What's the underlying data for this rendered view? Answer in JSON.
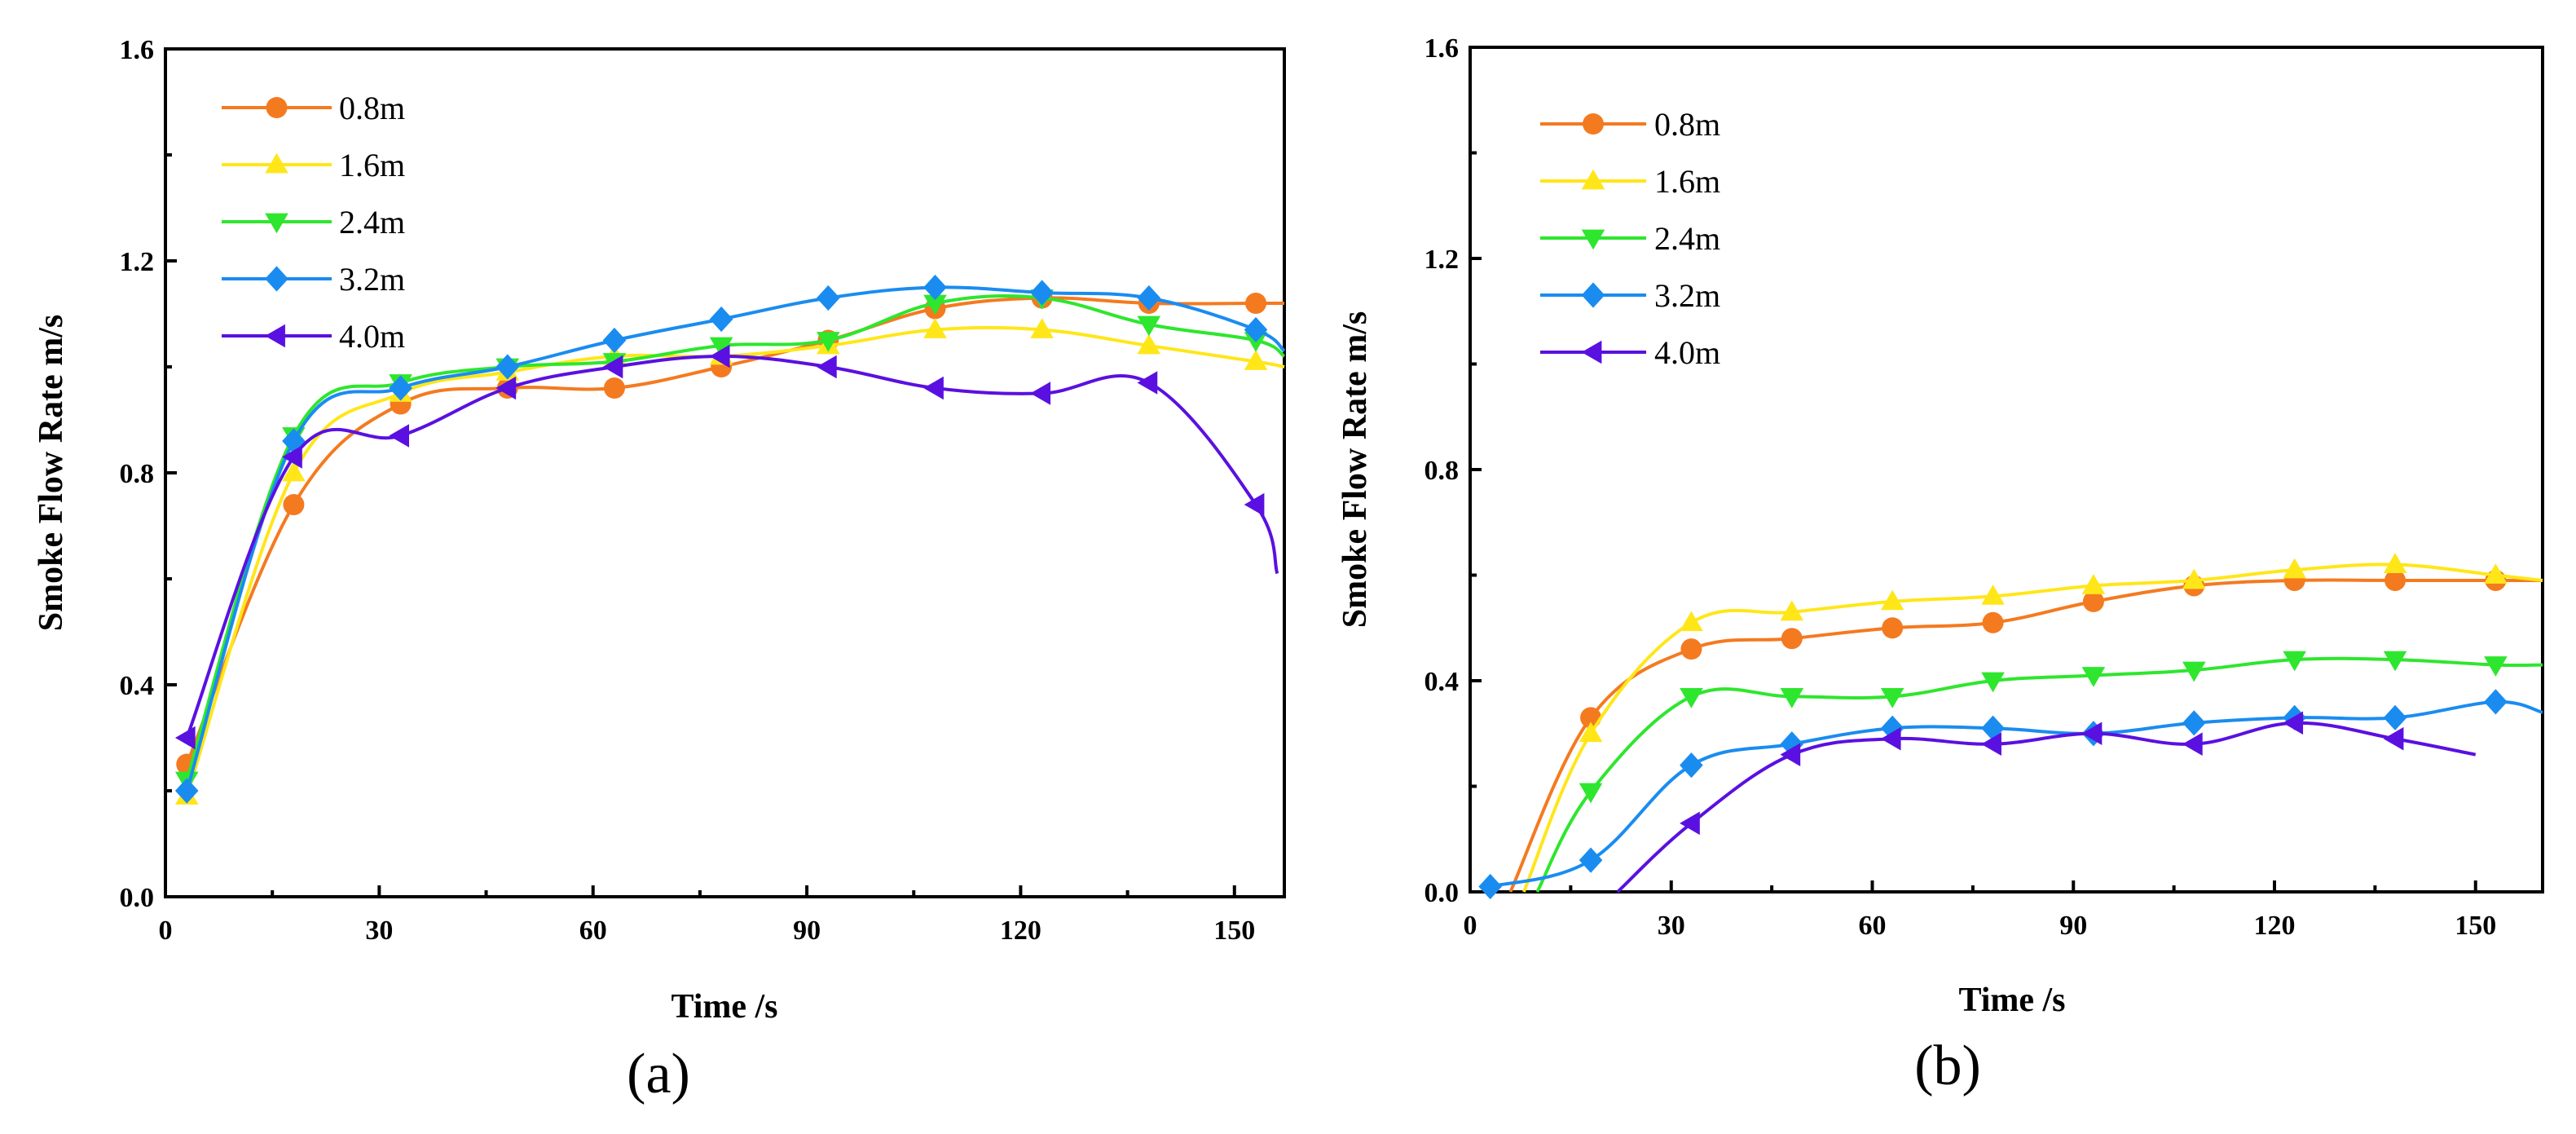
{
  "chart_data": [
    {
      "type": "line",
      "panel_label": "(a)",
      "xlabel": "Time /s",
      "ylabel": "Smoke Flow Rate m/s",
      "xlim": [
        0,
        157
      ],
      "ylim": [
        0,
        1.6
      ],
      "xticks": [
        "0",
        "30",
        "60",
        "90",
        "120",
        "150"
      ],
      "yticks": [
        "0.0",
        "0.4",
        "0.8",
        "1.2",
        "1.6"
      ],
      "legend_position": "top-left",
      "series": [
        {
          "name": "0.8m",
          "color": "#f47a20",
          "marker": "circle",
          "x": [
            3,
            18,
            33,
            48,
            63,
            78,
            93,
            108,
            123,
            138,
            153
          ],
          "y": [
            0.25,
            0.74,
            0.93,
            0.96,
            0.96,
            1.0,
            1.05,
            1.11,
            1.13,
            1.12,
            1.12
          ],
          "line_end": [
            157,
            1.12
          ]
        },
        {
          "name": "1.6m",
          "color": "#ffe619",
          "marker": "triangle-up",
          "x": [
            3,
            18,
            33,
            48,
            63,
            78,
            93,
            108,
            123,
            138,
            153
          ],
          "y": [
            0.19,
            0.8,
            0.95,
            0.99,
            1.02,
            1.02,
            1.04,
            1.07,
            1.07,
            1.04,
            1.01
          ],
          "line_end": [
            157,
            1.0
          ]
        },
        {
          "name": "2.4m",
          "color": "#2ee62e",
          "marker": "triangle-down",
          "x": [
            3,
            18,
            33,
            48,
            63,
            78,
            93,
            108,
            123,
            138,
            153
          ],
          "y": [
            0.22,
            0.87,
            0.97,
            1.0,
            1.01,
            1.04,
            1.05,
            1.12,
            1.13,
            1.08,
            1.05
          ],
          "line_end": [
            157,
            1.02
          ]
        },
        {
          "name": "3.2m",
          "color": "#1a8cf0",
          "marker": "diamond",
          "x": [
            3,
            18,
            33,
            48,
            63,
            78,
            93,
            108,
            123,
            138,
            153
          ],
          "y": [
            0.2,
            0.86,
            0.96,
            1.0,
            1.05,
            1.09,
            1.13,
            1.15,
            1.14,
            1.13,
            1.07
          ],
          "line_end": [
            157,
            1.03
          ]
        },
        {
          "name": "4.0m",
          "color": "#5a10e0",
          "marker": "triangle-left",
          "x": [
            3,
            18,
            33,
            48,
            63,
            78,
            93,
            108,
            123,
            138,
            153
          ],
          "y": [
            0.3,
            0.83,
            0.87,
            0.96,
            1.0,
            1.02,
            1.0,
            0.96,
            0.95,
            0.97,
            0.74
          ],
          "line_end": [
            156,
            0.61
          ]
        }
      ]
    },
    {
      "type": "line",
      "panel_label": "(b)",
      "xlabel": "Time /s",
      "ylabel": "Smoke Flow Rate m/s",
      "xlim": [
        0,
        160
      ],
      "ylim": [
        0,
        1.6
      ],
      "xticks": [
        "0",
        "30",
        "60",
        "90",
        "120",
        "150"
      ],
      "yticks": [
        "0.0",
        "0.4",
        "0.8",
        "1.2",
        "1.6"
      ],
      "legend_position": "top-left",
      "series": [
        {
          "name": "0.8m",
          "color": "#f47a20",
          "marker": "circle",
          "x": [
            18,
            33,
            48,
            63,
            78,
            93,
            108,
            123,
            138,
            153
          ],
          "y": [
            0.33,
            0.46,
            0.48,
            0.5,
            0.51,
            0.55,
            0.58,
            0.59,
            0.59,
            0.59
          ],
          "line_start": [
            6,
            0.0
          ],
          "line_end": [
            160,
            0.59
          ]
        },
        {
          "name": "1.6m",
          "color": "#ffe619",
          "marker": "triangle-up",
          "x": [
            18,
            33,
            48,
            63,
            78,
            93,
            108,
            123,
            138,
            153
          ],
          "y": [
            0.3,
            0.51,
            0.53,
            0.55,
            0.56,
            0.58,
            0.59,
            0.61,
            0.62,
            0.6
          ],
          "line_start": [
            8,
            0.0
          ],
          "line_end": [
            160,
            0.59
          ]
        },
        {
          "name": "2.4m",
          "color": "#2ee62e",
          "marker": "triangle-down",
          "x": [
            18,
            33,
            48,
            63,
            78,
            93,
            108,
            123,
            138,
            153
          ],
          "y": [
            0.19,
            0.37,
            0.37,
            0.37,
            0.4,
            0.41,
            0.42,
            0.44,
            0.44,
            0.43
          ],
          "line_start": [
            10,
            0.0
          ],
          "line_end": [
            160,
            0.43
          ]
        },
        {
          "name": "3.2m",
          "color": "#1a8cf0",
          "marker": "diamond",
          "x": [
            3,
            18,
            33,
            48,
            63,
            78,
            93,
            108,
            123,
            138,
            153
          ],
          "y": [
            0.01,
            0.06,
            0.24,
            0.28,
            0.31,
            0.31,
            0.3,
            0.32,
            0.33,
            0.33,
            0.36
          ],
          "line_end": [
            160,
            0.34
          ]
        },
        {
          "name": "4.0m",
          "color": "#5a10e0",
          "marker": "triangle-left",
          "x": [
            33,
            48,
            63,
            78,
            93,
            108,
            123,
            138
          ],
          "y": [
            0.13,
            0.26,
            0.29,
            0.28,
            0.3,
            0.28,
            0.32,
            0.29
          ],
          "line_start": [
            22,
            0.0
          ],
          "line_end": [
            150,
            0.26
          ]
        }
      ]
    }
  ]
}
